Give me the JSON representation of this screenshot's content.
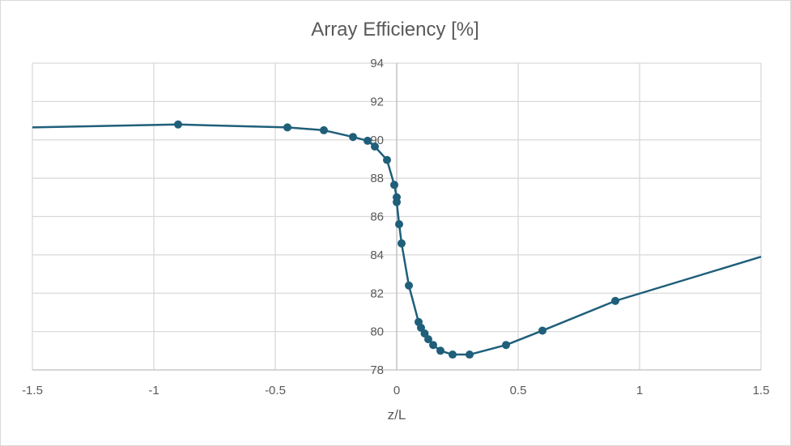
{
  "chart_data": {
    "type": "scatter",
    "title": "Array Efficiency [%]",
    "xlabel": "z/L",
    "ylabel": "",
    "xlim": [
      -1.5,
      1.5
    ],
    "ylim": [
      78,
      94
    ],
    "x_ticks": [
      "-1.5",
      "-1",
      "-0.5",
      "0",
      "0.5",
      "1",
      "1.5"
    ],
    "y_ticks": [
      "78",
      "80",
      "82",
      "84",
      "86",
      "88",
      "90",
      "92",
      "94"
    ],
    "grid": true,
    "legend": "none",
    "series": [
      {
        "color": "#1f5f7a",
        "line_start": {
          "x": -1.5,
          "y": 90.65
        },
        "line_end": {
          "x": 1.5,
          "y": 83.9
        },
        "points": [
          {
            "x": -0.9,
            "y": 90.8
          },
          {
            "x": -0.45,
            "y": 90.65
          },
          {
            "x": -0.3,
            "y": 90.5
          },
          {
            "x": -0.18,
            "y": 90.15
          },
          {
            "x": -0.12,
            "y": 89.95
          },
          {
            "x": -0.09,
            "y": 89.65
          },
          {
            "x": -0.04,
            "y": 88.95
          },
          {
            "x": -0.01,
            "y": 87.65
          },
          {
            "x": 0.0,
            "y": 87.0
          },
          {
            "x": 0.0,
            "y": 86.75
          },
          {
            "x": 0.01,
            "y": 85.6
          },
          {
            "x": 0.02,
            "y": 84.6
          },
          {
            "x": 0.05,
            "y": 82.4
          },
          {
            "x": 0.09,
            "y": 80.5
          },
          {
            "x": 0.1,
            "y": 80.2
          },
          {
            "x": 0.115,
            "y": 79.9
          },
          {
            "x": 0.13,
            "y": 79.6
          },
          {
            "x": 0.15,
            "y": 79.3
          },
          {
            "x": 0.18,
            "y": 79.0
          },
          {
            "x": 0.23,
            "y": 78.8
          },
          {
            "x": 0.3,
            "y": 78.8
          },
          {
            "x": 0.45,
            "y": 79.3
          },
          {
            "x": 0.6,
            "y": 80.05
          },
          {
            "x": 0.9,
            "y": 81.6
          }
        ]
      }
    ]
  }
}
